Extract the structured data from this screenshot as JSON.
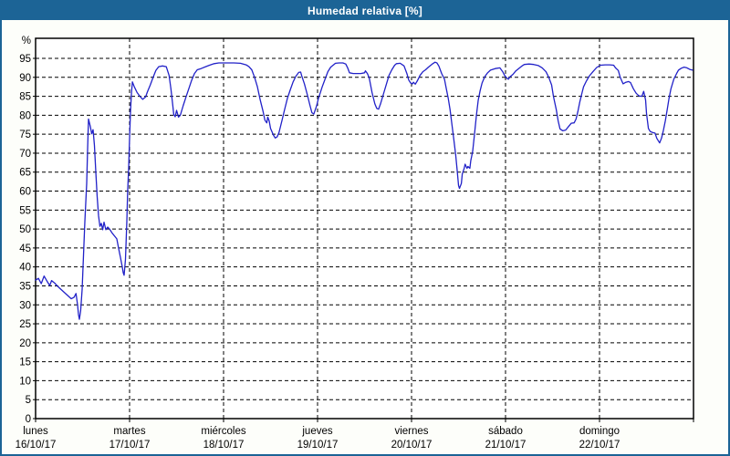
{
  "window": {
    "title": "Humedad relativa [%]"
  },
  "colors": {
    "titlebar_bg": "#1c6496",
    "titlebar_text": "#ffffff",
    "frame_border": "#1c6496",
    "chart_bg": "#fdfefa",
    "plot_border": "#000000",
    "grid": "#000000",
    "tick_text": "#000000",
    "series_line": "#2121c8"
  },
  "chart_data": {
    "type": "line",
    "title": "Humedad relativa [%]",
    "y_unit": "%",
    "ylim": [
      0,
      100.3
    ],
    "y_tick_step": 5,
    "y_ticks": [
      0,
      5,
      10,
      15,
      20,
      25,
      30,
      35,
      40,
      45,
      50,
      55,
      60,
      65,
      70,
      75,
      80,
      85,
      90,
      95
    ],
    "x_range_days": [
      0,
      7
    ],
    "grid": "dashed",
    "legend_position": "none",
    "days": [
      {
        "name": "lunes",
        "date": "16/10/17"
      },
      {
        "name": "martes",
        "date": "17/10/17"
      },
      {
        "name": "miércoles",
        "date": "18/10/17"
      },
      {
        "name": "jueves",
        "date": "19/10/17"
      },
      {
        "name": "viernes",
        "date": "20/10/17"
      },
      {
        "name": "sábado",
        "date": "21/10/17"
      },
      {
        "name": "domingo",
        "date": "22/10/17"
      }
    ],
    "series": [
      {
        "name": "Humedad relativa",
        "color": "#2121c8",
        "points": [
          [
            0,
            36.5
          ],
          [
            0.03,
            37
          ],
          [
            0.06,
            35.6
          ],
          [
            0.09,
            37.6
          ],
          [
            0.12,
            36.3
          ],
          [
            0.15,
            35.1
          ],
          [
            0.17,
            36.4
          ],
          [
            0.2,
            35.8
          ],
          [
            0.23,
            35
          ],
          [
            0.26,
            34.3
          ],
          [
            0.3,
            33.4
          ],
          [
            0.34,
            32.5
          ],
          [
            0.38,
            31.6
          ],
          [
            0.41,
            32
          ],
          [
            0.43,
            33
          ],
          [
            0.447,
            30
          ],
          [
            0.456,
            27.5
          ],
          [
            0.466,
            26.2
          ],
          [
            0.48,
            28.5
          ],
          [
            0.495,
            34
          ],
          [
            0.51,
            43
          ],
          [
            0.524,
            52
          ],
          [
            0.544,
            62
          ],
          [
            0.553,
            71
          ],
          [
            0.563,
            79
          ],
          [
            0.583,
            77
          ],
          [
            0.597,
            75.1
          ],
          [
            0.612,
            76.2
          ],
          [
            0.626,
            72
          ],
          [
            0.641,
            65
          ],
          [
            0.655,
            58.5
          ],
          [
            0.67,
            53.5
          ],
          [
            0.684,
            50.7
          ],
          [
            0.699,
            51.5
          ],
          [
            0.714,
            49.8
          ],
          [
            0.728,
            51.8
          ],
          [
            0.748,
            49.8
          ],
          [
            0.767,
            50.5
          ],
          [
            0.786,
            50
          ],
          [
            0.816,
            48.9
          ],
          [
            0.845,
            48
          ],
          [
            0.864,
            47.4
          ],
          [
            0.883,
            45
          ],
          [
            0.903,
            42.5
          ],
          [
            0.922,
            40
          ],
          [
            0.932,
            38.5
          ],
          [
            0.942,
            37.8
          ],
          [
            0.956,
            42
          ],
          [
            0.971,
            52
          ],
          [
            0.98,
            60
          ],
          [
            0.99,
            66
          ],
          [
            1,
            74
          ],
          [
            1.01,
            81
          ],
          [
            1.02,
            86
          ],
          [
            1.03,
            88.8
          ],
          [
            1.05,
            87.5
          ],
          [
            1.08,
            86
          ],
          [
            1.11,
            85
          ],
          [
            1.14,
            84.2
          ],
          [
            1.17,
            84.8
          ],
          [
            1.19,
            86.2
          ],
          [
            1.22,
            88
          ],
          [
            1.25,
            90
          ],
          [
            1.28,
            91.8
          ],
          [
            1.31,
            92.8
          ],
          [
            1.35,
            93
          ],
          [
            1.39,
            92.8
          ],
          [
            1.42,
            90.5
          ],
          [
            1.44,
            87
          ],
          [
            1.46,
            82.5
          ],
          [
            1.47,
            80.2
          ],
          [
            1.485,
            79.6
          ],
          [
            1.5,
            81.3
          ],
          [
            1.52,
            79.5
          ],
          [
            1.54,
            80
          ],
          [
            1.57,
            82.5
          ],
          [
            1.6,
            84.8
          ],
          [
            1.63,
            87
          ],
          [
            1.66,
            89.2
          ],
          [
            1.69,
            91
          ],
          [
            1.72,
            92
          ],
          [
            1.76,
            92.3
          ],
          [
            1.81,
            92.8
          ],
          [
            1.85,
            93.2
          ],
          [
            1.9,
            93.6
          ],
          [
            1.95,
            93.8
          ],
          [
            2.03,
            93.8
          ],
          [
            2.11,
            93.8
          ],
          [
            2.18,
            93.7
          ],
          [
            2.24,
            93.3
          ],
          [
            2.27,
            92.8
          ],
          [
            2.3,
            92
          ],
          [
            2.33,
            90
          ],
          [
            2.36,
            87.5
          ],
          [
            2.39,
            84
          ],
          [
            2.42,
            81
          ],
          [
            2.44,
            78.7
          ],
          [
            2.46,
            78
          ],
          [
            2.47,
            79.5
          ],
          [
            2.485,
            78.5
          ],
          [
            2.5,
            76.5
          ],
          [
            2.53,
            74.8
          ],
          [
            2.55,
            74
          ],
          [
            2.57,
            74.3
          ],
          [
            2.59,
            75.5
          ],
          [
            2.62,
            78.5
          ],
          [
            2.65,
            81.5
          ],
          [
            2.68,
            84.5
          ],
          [
            2.71,
            86.7
          ],
          [
            2.74,
            88.8
          ],
          [
            2.77,
            90.3
          ],
          [
            2.8,
            91.3
          ],
          [
            2.82,
            91.4
          ],
          [
            2.83,
            90.5
          ],
          [
            2.86,
            88.3
          ],
          [
            2.89,
            85.5
          ],
          [
            2.92,
            82.5
          ],
          [
            2.94,
            80.7
          ],
          [
            2.96,
            80.3
          ],
          [
            2.97,
            81
          ],
          [
            2.99,
            82.5
          ],
          [
            3.01,
            84.5
          ],
          [
            3.03,
            86
          ],
          [
            3.05,
            87.5
          ],
          [
            3.08,
            89.5
          ],
          [
            3.11,
            91.5
          ],
          [
            3.14,
            92.7
          ],
          [
            3.17,
            93.3
          ],
          [
            3.19,
            93.7
          ],
          [
            3.23,
            93.8
          ],
          [
            3.27,
            93.8
          ],
          [
            3.3,
            93.5
          ],
          [
            3.32,
            92.5
          ],
          [
            3.34,
            91.2
          ],
          [
            3.38,
            91
          ],
          [
            3.42,
            91
          ],
          [
            3.46,
            91
          ],
          [
            3.5,
            91.2
          ],
          [
            3.51,
            91.7
          ],
          [
            3.53,
            91
          ],
          [
            3.55,
            89.9
          ],
          [
            3.58,
            86
          ],
          [
            3.61,
            83
          ],
          [
            3.63,
            81.8
          ],
          [
            3.65,
            81.6
          ],
          [
            3.67,
            83
          ],
          [
            3.7,
            85.5
          ],
          [
            3.73,
            88
          ],
          [
            3.76,
            90.5
          ],
          [
            3.79,
            92
          ],
          [
            3.82,
            93.2
          ],
          [
            3.84,
            93.6
          ],
          [
            3.88,
            93.7
          ],
          [
            3.92,
            93
          ],
          [
            3.95,
            91
          ],
          [
            3.97,
            89.3
          ],
          [
            3.99,
            88.5
          ],
          [
            4.01,
            88.3
          ],
          [
            4.02,
            88.7
          ],
          [
            4.04,
            88.2
          ],
          [
            4.06,
            89
          ],
          [
            4.09,
            90.5
          ],
          [
            4.12,
            91.5
          ],
          [
            4.15,
            92
          ],
          [
            4.18,
            92.7
          ],
          [
            4.22,
            93.5
          ],
          [
            4.25,
            94
          ],
          [
            4.27,
            93.8
          ],
          [
            4.29,
            93
          ],
          [
            4.32,
            91
          ],
          [
            4.35,
            89.5
          ],
          [
            4.37,
            87
          ],
          [
            4.39,
            84.5
          ],
          [
            4.41,
            81.5
          ],
          [
            4.43,
            77.5
          ],
          [
            4.45,
            73.5
          ],
          [
            4.47,
            69.5
          ],
          [
            4.485,
            65.5
          ],
          [
            4.5,
            61.5
          ],
          [
            4.51,
            60.7
          ],
          [
            4.53,
            62
          ],
          [
            4.54,
            64.5
          ],
          [
            4.56,
            66
          ],
          [
            4.57,
            67.1
          ],
          [
            4.59,
            66
          ],
          [
            4.6,
            66.5
          ],
          [
            4.62,
            66
          ],
          [
            4.63,
            68
          ],
          [
            4.65,
            70.5
          ],
          [
            4.67,
            75
          ],
          [
            4.69,
            80
          ],
          [
            4.71,
            84
          ],
          [
            4.73,
            86.5
          ],
          [
            4.75,
            88.5
          ],
          [
            4.78,
            90.2
          ],
          [
            4.81,
            91.2
          ],
          [
            4.84,
            91.9
          ],
          [
            4.89,
            92.3
          ],
          [
            4.94,
            92.5
          ],
          [
            4.97,
            91.5
          ],
          [
            4.99,
            90.5
          ],
          [
            5.01,
            89.9
          ],
          [
            5.03,
            89.5
          ],
          [
            5.05,
            90.2
          ],
          [
            5.08,
            90.8
          ],
          [
            5.11,
            91.7
          ],
          [
            5.14,
            92.3
          ],
          [
            5.17,
            92.9
          ],
          [
            5.2,
            93.4
          ],
          [
            5.25,
            93.5
          ],
          [
            5.3,
            93.4
          ],
          [
            5.35,
            93.1
          ],
          [
            5.39,
            92.5
          ],
          [
            5.43,
            91.5
          ],
          [
            5.46,
            90
          ],
          [
            5.49,
            88
          ],
          [
            5.51,
            85
          ],
          [
            5.54,
            81.5
          ],
          [
            5.56,
            78.5
          ],
          [
            5.58,
            76.4
          ],
          [
            5.61,
            75.9
          ],
          [
            5.64,
            76.1
          ],
          [
            5.67,
            77
          ],
          [
            5.7,
            77.9
          ],
          [
            5.73,
            78
          ],
          [
            5.75,
            79
          ],
          [
            5.77,
            81
          ],
          [
            5.79,
            83.5
          ],
          [
            5.81,
            85.5
          ],
          [
            5.83,
            87.5
          ],
          [
            5.86,
            89
          ],
          [
            5.89,
            90.3
          ],
          [
            5.93,
            91.5
          ],
          [
            5.97,
            92.6
          ],
          [
            6.01,
            93.2
          ],
          [
            6.06,
            93.3
          ],
          [
            6.11,
            93.3
          ],
          [
            6.15,
            93.2
          ],
          [
            6.17,
            92.5
          ],
          [
            6.2,
            91.8
          ],
          [
            6.22,
            90
          ],
          [
            6.25,
            88.3
          ],
          [
            6.28,
            88.7
          ],
          [
            6.31,
            88.9
          ],
          [
            6.33,
            88.6
          ],
          [
            6.36,
            87
          ],
          [
            6.39,
            85.8
          ],
          [
            6.42,
            85.1
          ],
          [
            6.45,
            85
          ],
          [
            6.47,
            86.3
          ],
          [
            6.49,
            84
          ],
          [
            6.5,
            80.5
          ],
          [
            6.52,
            76.5
          ],
          [
            6.54,
            75.7
          ],
          [
            6.57,
            75.4
          ],
          [
            6.59,
            75.3
          ],
          [
            6.61,
            73.9
          ],
          [
            6.64,
            72.7
          ],
          [
            6.66,
            74
          ],
          [
            6.68,
            76
          ],
          [
            6.7,
            78.5
          ],
          [
            6.72,
            81.5
          ],
          [
            6.74,
            84.5
          ],
          [
            6.76,
            87
          ],
          [
            6.79,
            89.5
          ],
          [
            6.82,
            91
          ],
          [
            6.84,
            91.9
          ],
          [
            6.87,
            92.4
          ],
          [
            6.9,
            92.7
          ],
          [
            6.93,
            92.5
          ],
          [
            6.96,
            92.1
          ],
          [
            6.99,
            91.9
          ]
        ]
      }
    ]
  }
}
